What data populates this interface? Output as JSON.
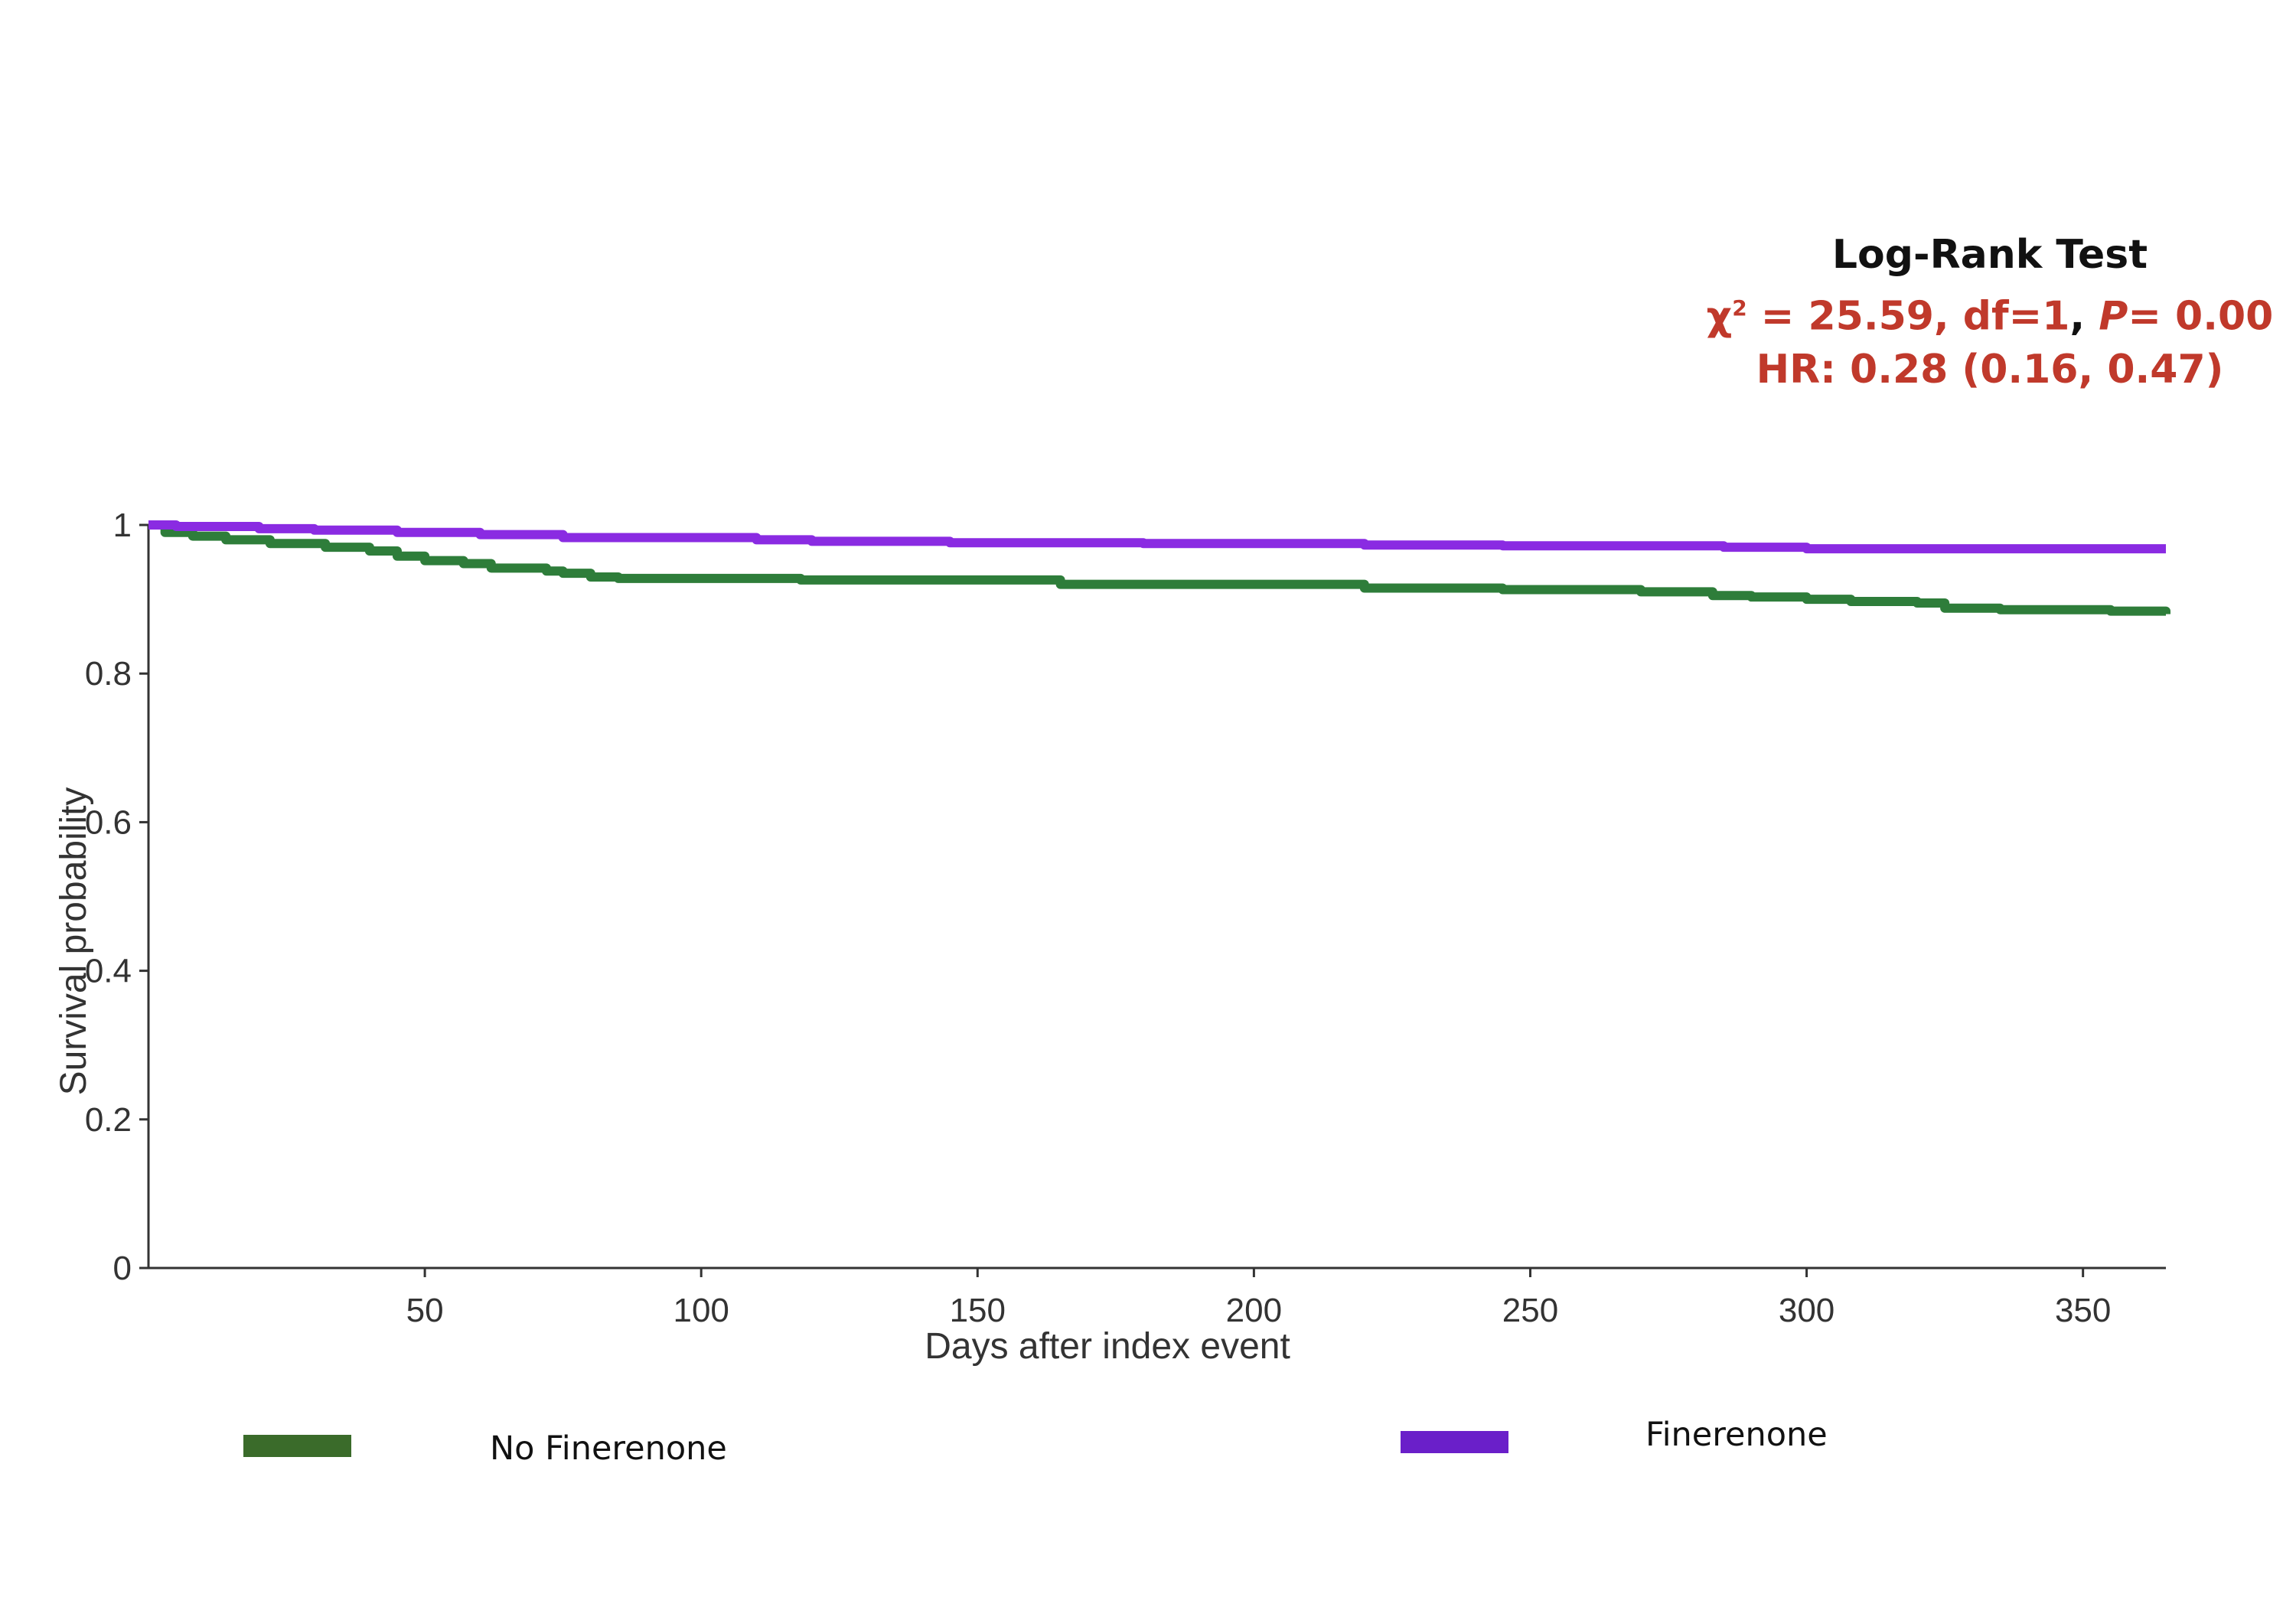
{
  "stats": {
    "title": "Log-Rank Test",
    "chi_symbol": "χ",
    "chi_sup": "2",
    "chi_rest": " = 25.59, df=1",
    "comma": ",",
    "p_label": "P=",
    "p_value": " 0.00",
    "hr": "HR: 0.28 (0.16, 0.47)"
  },
  "colors": {
    "no_finerenone": "#2e7d3a",
    "finerenone": "#8a2be2",
    "stats_red": "#c0392b",
    "legend_green": "#3a6b2a",
    "legend_purple": "#6a1fc9"
  },
  "chart_data": {
    "type": "line",
    "xlabel": "Days after index event",
    "ylabel": "Survival probability",
    "xlim": [
      0,
      365
    ],
    "ylim": [
      0,
      1
    ],
    "x_ticks": [
      50,
      100,
      150,
      200,
      250,
      300,
      350
    ],
    "y_ticks": [
      0,
      0.2,
      0.4,
      0.6,
      0.8,
      1
    ],
    "y_tick_labels": [
      "0",
      "0.2",
      "0.4",
      "0.6",
      "0.8",
      "1"
    ],
    "grid": false,
    "legend_position": "bottom",
    "series": [
      {
        "name": "No Finerenone",
        "color": "#2e7d3a",
        "step": true,
        "x": [
          0,
          3,
          8,
          14,
          22,
          32,
          40,
          45,
          50,
          57,
          62,
          72,
          75,
          80,
          85,
          100,
          118,
          130,
          165,
          190,
          210,
          220,
          245,
          270,
          283,
          290,
          300,
          308,
          320,
          325,
          335,
          355,
          365
        ],
        "y": [
          1.0,
          0.99,
          0.985,
          0.98,
          0.975,
          0.97,
          0.965,
          0.958,
          0.952,
          0.948,
          0.942,
          0.938,
          0.935,
          0.93,
          0.928,
          0.928,
          0.926,
          0.926,
          0.92,
          0.92,
          0.92,
          0.915,
          0.913,
          0.91,
          0.905,
          0.903,
          0.9,
          0.897,
          0.895,
          0.888,
          0.886,
          0.884,
          0.88
        ]
      },
      {
        "name": "Finerenone",
        "color": "#8a2be2",
        "step": true,
        "x": [
          0,
          5,
          20,
          30,
          45,
          60,
          75,
          110,
          120,
          145,
          180,
          220,
          245,
          285,
          300,
          365
        ],
        "y": [
          1.0,
          0.998,
          0.995,
          0.993,
          0.99,
          0.987,
          0.983,
          0.98,
          0.978,
          0.976,
          0.975,
          0.973,
          0.972,
          0.97,
          0.968,
          0.968
        ]
      }
    ]
  }
}
